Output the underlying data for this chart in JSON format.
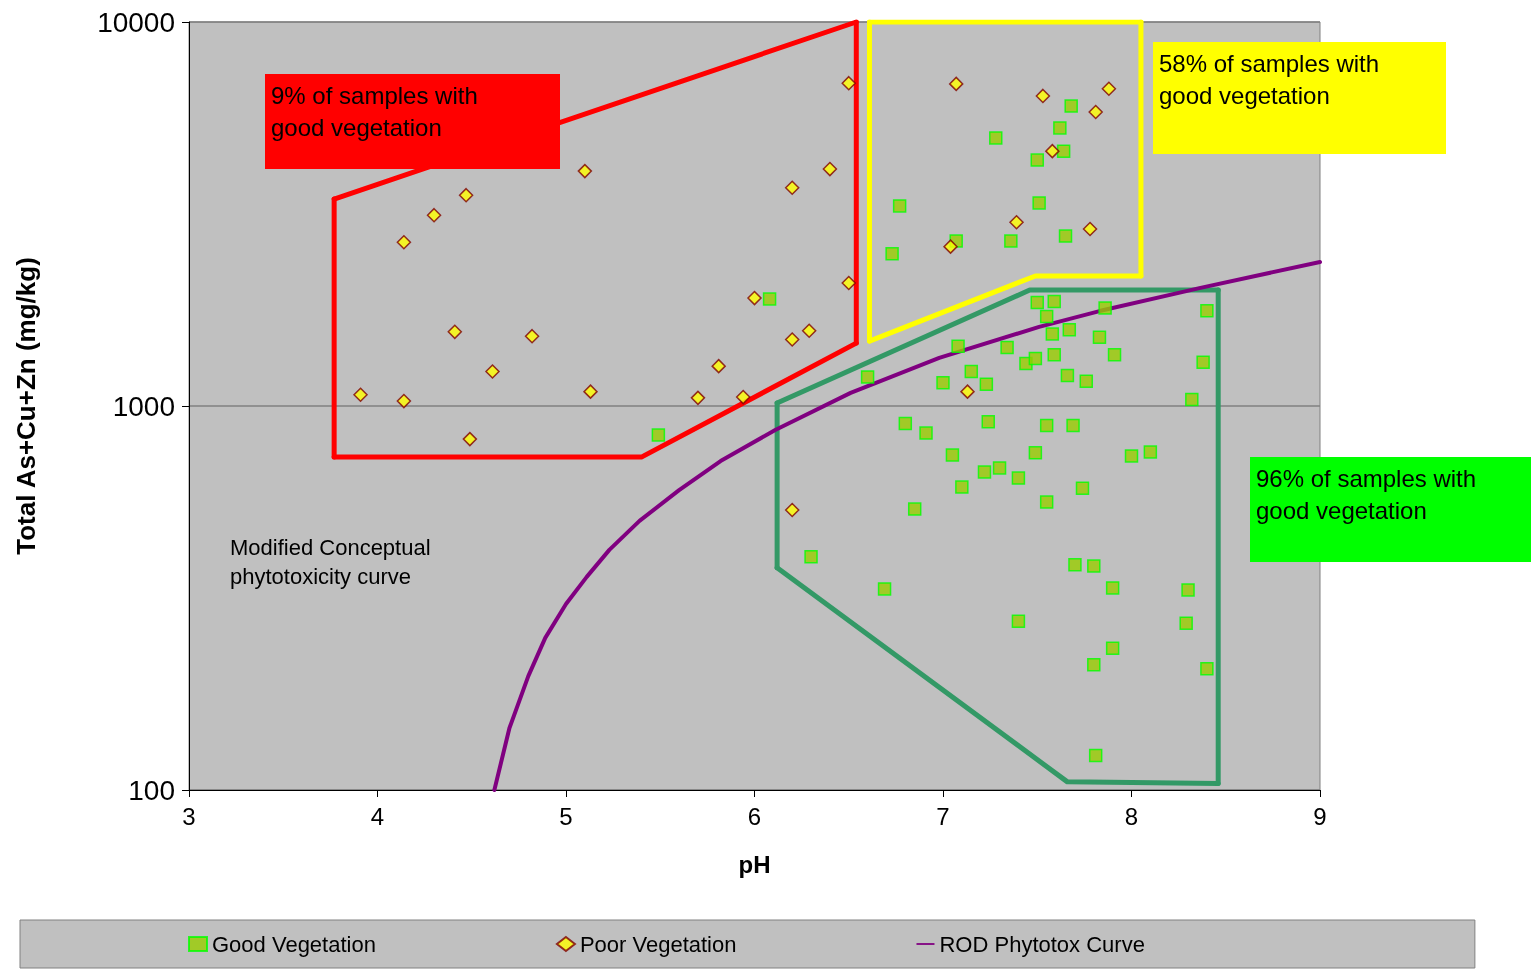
{
  "chart_data": {
    "type": "scatter",
    "xlabel": "pH",
    "ylabel": "Total As+Cu+Zn (mg/kg)",
    "xlim": [
      3,
      9
    ],
    "xticks": [
      3,
      4,
      5,
      6,
      7,
      8,
      9
    ],
    "ylim": [
      100,
      10000
    ],
    "yticks": [
      100,
      1000,
      10000
    ],
    "log": "y",
    "grid": "y",
    "legend": "bottom",
    "annotations": [
      "9% of samples with good vegetation",
      "58% of samples with good vegetation",
      "96% of samples with good vegetation",
      "Modified Conceptual phytotoxicity curve"
    ],
    "series": [
      {
        "type": "line",
        "color": "#ff0000",
        "marker": "none",
        "x": [
          3.77,
          6.54
        ],
        "values": [
          3459,
          10000
        ]
      },
      {
        "type": "line",
        "color": "#ff0000",
        "marker": "none",
        "x": [
          3.77,
          5.4,
          6.54
        ],
        "values": [
          736,
          736,
          1458
        ]
      },
      {
        "type": "line",
        "color": "#ff0000",
        "marker": "none",
        "x": [
          3.77,
          3.77
        ],
        "values": [
          736,
          3459
        ]
      },
      {
        "type": "line",
        "color": "#ff0000",
        "marker": "none",
        "x": [
          6.54,
          6.54
        ],
        "values": [
          1458,
          10000
        ]
      },
      {
        "type": "line",
        "color": "#ffff00",
        "marker": "none",
        "x": [
          6.61,
          8.05
        ],
        "values": [
          10000,
          10000
        ]
      },
      {
        "type": "line",
        "color": "#ffff00",
        "marker": "none",
        "x": [
          6.61,
          7.49,
          8.05
        ],
        "values": [
          1476,
          2181,
          2181
        ]
      },
      {
        "type": "line",
        "color": "#ffff00",
        "marker": "none",
        "x": [
          6.61,
          6.61
        ],
        "values": [
          1476,
          10000
        ]
      },
      {
        "type": "line",
        "color": "#ffff00",
        "marker": "none",
        "x": [
          8.05,
          8.05
        ],
        "values": [
          2181,
          10000
        ]
      },
      {
        "type": "line",
        "color": "#339966",
        "marker": "none",
        "x": [
          6.12,
          7.46,
          8.46
        ],
        "values": [
          1018,
          2004,
          2004
        ]
      },
      {
        "type": "line",
        "color": "#339966",
        "marker": "none",
        "x": [
          6.12,
          7.66,
          8.46
        ],
        "values": [
          379,
          105,
          104
        ]
      },
      {
        "type": "line",
        "color": "#339966",
        "marker": "none",
        "x": [
          6.12,
          6.12
        ],
        "values": [
          379,
          1018
        ]
      },
      {
        "type": "line",
        "color": "#339966",
        "marker": "none",
        "x": [
          8.46,
          8.46
        ],
        "values": [
          104,
          2004
        ]
      },
      {
        "name": "Good Vegetation",
        "color": "#99cc00",
        "marker": "square",
        "x": [
          6.08,
          5.49,
          7.28,
          7.68,
          7.62,
          7.5,
          7.64,
          7.51,
          6.77,
          7.07,
          6.73,
          7.36,
          7.65,
          7.5,
          7.59,
          7.55,
          7.86,
          8.4,
          7.08,
          7.34,
          7.58,
          7.67,
          7.83,
          6.6,
          7.15,
          7.44,
          7.49,
          7.59,
          7.91,
          8.38,
          7.0,
          7.23,
          7.66,
          7.76,
          8.32,
          6.8,
          6.91,
          7.24,
          7.55,
          7.69,
          7.05,
          7.49,
          8.0,
          8.1,
          7.22,
          7.3,
          7.1,
          7.4,
          7.74,
          6.85,
          7.55,
          6.3,
          6.69,
          7.7,
          7.8,
          7.9,
          8.3,
          7.4,
          7.9,
          8.29,
          7.8,
          8.4,
          7.81
        ],
        "values": [
          1900,
          840,
          4990,
          6040,
          5300,
          4370,
          4610,
          3380,
          3320,
          2690,
          2490,
          2690,
          2770,
          1860,
          1870,
          1710,
          1800,
          1770,
          1430,
          1420,
          1540,
          1580,
          1510,
          1190,
          1230,
          1290,
          1330,
          1360,
          1360,
          1300,
          1150,
          1140,
          1200,
          1160,
          1040,
          900,
          850,
          910,
          890,
          890,
          745,
          755,
          741,
          759,
          673,
          690,
          615,
          649,
          611,
          539,
          562,
          405,
          334,
          386,
          383,
          336,
          332,
          275,
          234,
          272,
          212,
          207,
          123
        ]
      },
      {
        "name": "Poor Vegetation",
        "color": "#ffff00",
        "marker": "diamond",
        "x": [
          6.5,
          4.14,
          4.3,
          4.47,
          5.1,
          6.2,
          6.4,
          4.41,
          4.82,
          4.61,
          3.91,
          4.14,
          4.49,
          5.13,
          5.7,
          5.94,
          6.0,
          5.81,
          6.2,
          6.29,
          6.5,
          7.07,
          7.53,
          7.88,
          7.81,
          7.58,
          7.39,
          7.04,
          7.78,
          7.13,
          6.2
        ],
        "values": [
          6930,
          2670,
          3140,
          3540,
          4090,
          3700,
          4140,
          1560,
          1520,
          1230,
          1070,
          1030,
          820,
          1090,
          1050,
          1055,
          1910,
          1270,
          1490,
          1570,
          2090,
          6900,
          6420,
          6700,
          5830,
          4610,
          3010,
          2600,
          2890,
          1090,
          536
        ]
      },
      {
        "name": "ROD Phytotox Curve",
        "type": "line",
        "color": "#800080",
        "marker": "none",
        "x": [
          4.62,
          4.7,
          4.8,
          4.89,
          5.0,
          5.11,
          5.23,
          5.39,
          5.6,
          5.82,
          6.11,
          6.51,
          6.98,
          7.51,
          7.83,
          8.36,
          9.0
        ],
        "values": [
          100,
          145,
          198,
          249,
          305,
          359,
          422,
          502,
          604,
          719,
          866,
          1082,
          1334,
          1607,
          1767,
          2028,
          2371
        ]
      }
    ]
  }
}
